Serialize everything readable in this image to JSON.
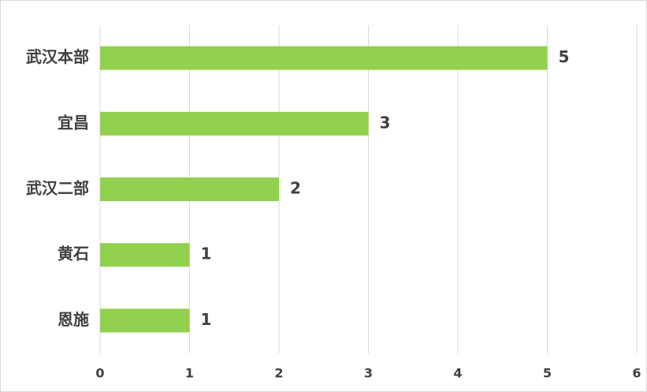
{
  "chart_data": {
    "type": "hbar",
    "categories": [
      "武汉本部",
      "宜昌",
      "武汉二部",
      "黄石",
      "恩施"
    ],
    "values": [
      5,
      3,
      2,
      1,
      1
    ],
    "color": "#92d050",
    "xlim": [
      0,
      6
    ],
    "xticks": [
      0,
      1,
      2,
      3,
      4,
      5,
      6
    ],
    "grid": true
  }
}
